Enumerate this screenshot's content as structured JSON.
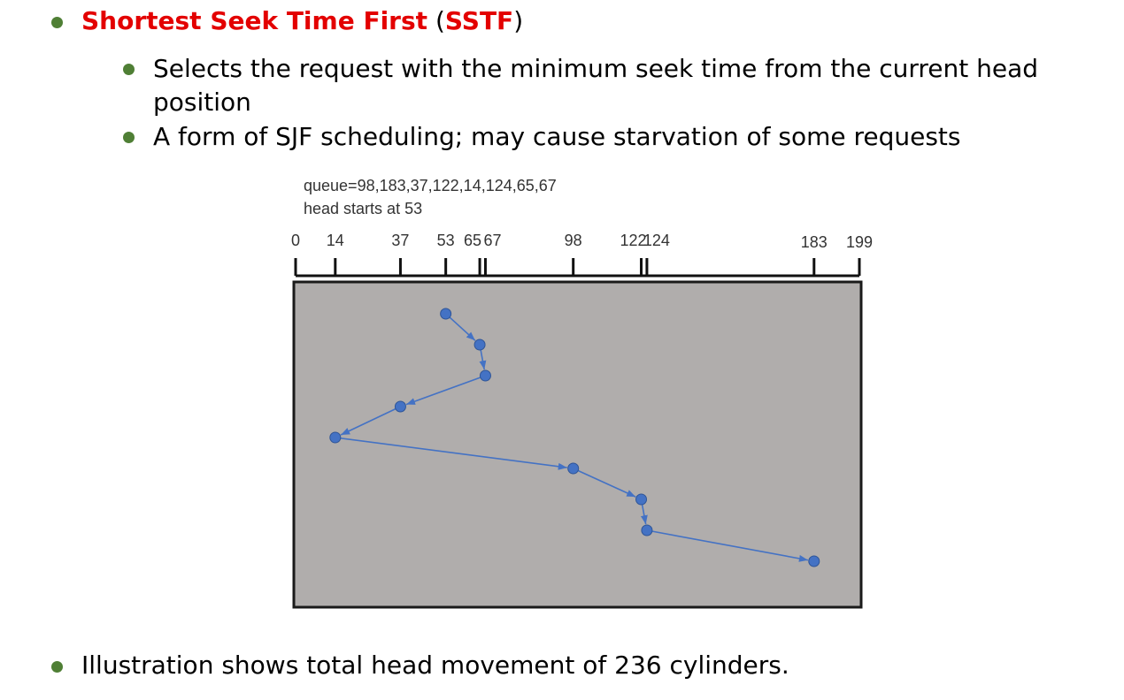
{
  "heading": {
    "title": "Shortest Seek Time First",
    "paren_open": "(",
    "abbrev": "SSTF",
    "paren_close": ")"
  },
  "sub_bullets": [
    {
      "text": "Selects the request with the minimum seek time from the current head"
    },
    {
      "text": "position"
    },
    {
      "text": "A form of SJF scheduling; may cause starvation of some requests"
    }
  ],
  "diagram": {
    "queue_label": "queue=98,183,37,122,14,124,65,67",
    "head_label": "head starts at 53",
    "cylinder_min": 0,
    "cylinder_max": 199,
    "ticks": [
      0,
      14,
      37,
      53,
      65,
      67,
      98,
      122,
      124,
      183,
      199
    ],
    "service_order": [
      53,
      65,
      67,
      37,
      14,
      98,
      122,
      124,
      183
    ],
    "colors": {
      "background": "#b0adac",
      "point": "#4472c4",
      "line": "#4472c4"
    }
  },
  "footer": {
    "text": "Illustration shows total head movement of 236 cylinders."
  }
}
